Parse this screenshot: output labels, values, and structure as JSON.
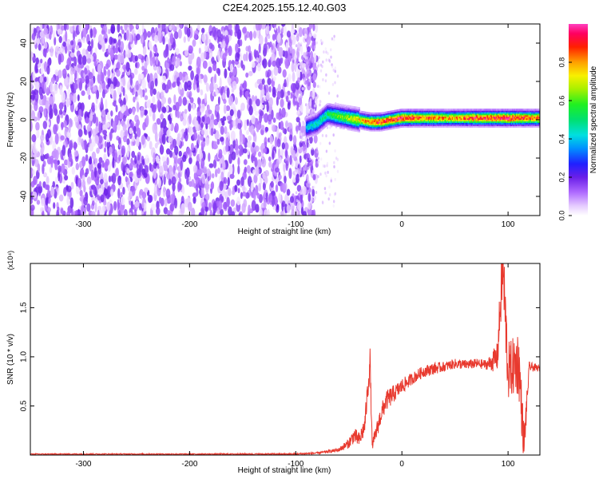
{
  "title": "C2E4.2025.155.12.40.G03",
  "chart_data": [
    {
      "type": "heatmap",
      "xlabel": "Height of straight line (km)",
      "ylabel": "Frequency (Hz)",
      "xlim": [
        -350,
        130
      ],
      "ylim": [
        -50,
        50
      ],
      "x_ticks": [
        -300,
        -200,
        -100,
        0,
        100
      ],
      "y_ticks": [
        -40,
        -20,
        0,
        20,
        40
      ],
      "colorbar": {
        "label": "Normalized spectral amplitude",
        "range": [
          0,
          1
        ],
        "ticks": [
          "0.0",
          "0.2",
          "0.4",
          "0.6",
          "0.8"
        ]
      },
      "regions": [
        {
          "x_range": [
            -350,
            -80
          ],
          "frequency_range": [
            -50,
            50
          ],
          "amplitude": [
            0.02,
            0.2
          ]
        },
        {
          "x_range": [
            -80,
            130
          ],
          "frequency_range": [
            -6,
            5
          ],
          "amplitude": [
            0.2,
            1.0
          ]
        }
      ],
      "ridge": {
        "x": [
          -90,
          -80,
          -70,
          -60,
          -50,
          -40,
          -30,
          -20,
          -10,
          0,
          10,
          20,
          30,
          40,
          50,
          60,
          70,
          80,
          90,
          100,
          110,
          120,
          130
        ],
        "frequency": [
          -4,
          -2,
          3,
          2,
          1,
          0,
          -1,
          -1,
          0,
          1,
          1,
          1,
          1,
          1,
          1,
          1,
          1,
          1,
          1,
          1,
          1,
          1,
          1
        ],
        "amplitude": [
          0.4,
          0.45,
          0.5,
          0.6,
          0.65,
          0.75,
          0.85,
          0.9,
          0.9,
          0.95,
          0.9,
          0.85,
          0.85,
          0.8,
          0.8,
          0.85,
          0.9,
          0.9,
          0.9,
          0.95,
          0.9,
          0.85,
          0.85
        ]
      }
    },
    {
      "type": "line",
      "xlabel": "Height of straight line (km)",
      "ylabel": "SNR (10 * v/v)",
      "y_multiplier": "(x10⁴)",
      "xlim": [
        -350,
        130
      ],
      "ylim": [
        0,
        1.95
      ],
      "x_ticks": [
        -300,
        -200,
        -100,
        0,
        100
      ],
      "y_ticks": [
        0.5,
        1.0,
        1.5
      ],
      "y_tick_labels": [
        "0.5",
        "1.0",
        "1.5"
      ],
      "color": "#e8392e",
      "series": [
        {
          "x": [
            -350,
            -300,
            -200,
            -100,
            -80,
            -60,
            -50,
            -45,
            -40,
            -35,
            -30,
            -28,
            -25,
            -20,
            -15,
            -10,
            -5,
            0,
            10,
            20,
            30,
            40,
            50,
            60,
            70,
            80,
            85,
            90,
            95,
            100,
            105,
            110,
            115,
            120,
            130
          ],
          "values": [
            0.01,
            0.01,
            0.01,
            0.01,
            0.02,
            0.05,
            0.12,
            0.2,
            0.15,
            0.3,
            0.95,
            0.1,
            0.2,
            0.4,
            0.55,
            0.6,
            0.65,
            0.7,
            0.78,
            0.85,
            0.88,
            0.9,
            0.93,
            0.92,
            0.93,
            0.92,
            0.95,
            1.0,
            1.95,
            0.85,
            0.9,
            0.95,
            0.1,
            0.9,
            0.88
          ],
          "noise": [
            0.005,
            0.005,
            0.005,
            0.008,
            0.01,
            0.02,
            0.05,
            0.08,
            0.08,
            0.1,
            0.15,
            0.05,
            0.08,
            0.1,
            0.1,
            0.1,
            0.08,
            0.08,
            0.06,
            0.06,
            0.06,
            0.05,
            0.05,
            0.05,
            0.05,
            0.05,
            0.1,
            0.15,
            0.4,
            0.3,
            0.3,
            0.35,
            0.2,
            0.05,
            0.03
          ]
        }
      ]
    }
  ]
}
